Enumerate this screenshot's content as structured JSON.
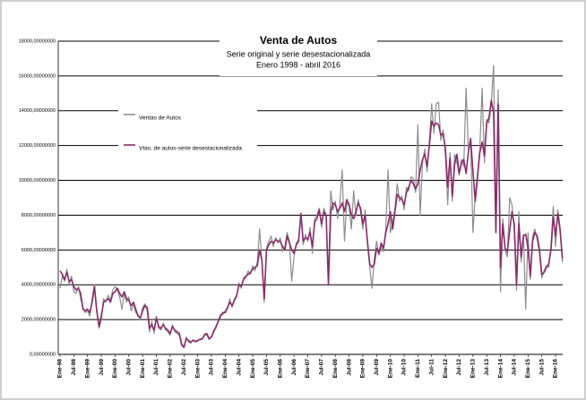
{
  "chart_data": {
    "type": "line",
    "title": "Venta de Autos",
    "subtitle": [
      "Serie original y serie desestacionalizada",
      "Enero 1998 - abril 2016"
    ],
    "categories": [
      "Ene-98",
      null,
      null,
      null,
      null,
      null,
      "Jul-98",
      null,
      null,
      null,
      null,
      null,
      "Ene-99",
      null,
      null,
      null,
      null,
      null,
      "Jul-99",
      null,
      null,
      null,
      null,
      null,
      "Ene-00",
      null,
      null,
      null,
      null,
      null,
      "Jul-00",
      null,
      null,
      null,
      null,
      null,
      "Ene-01",
      null,
      null,
      null,
      null,
      null,
      "Jul-01",
      null,
      null,
      null,
      null,
      null,
      "Ene-02",
      null,
      null,
      null,
      null,
      null,
      "Jul-02",
      null,
      null,
      null,
      null,
      null,
      "Ene-03",
      null,
      null,
      null,
      null,
      null,
      "Jul-03",
      null,
      null,
      null,
      null,
      null,
      "Ene-04",
      null,
      null,
      null,
      null,
      null,
      "Jul-04",
      null,
      null,
      null,
      null,
      null,
      "Ene-05",
      null,
      null,
      null,
      null,
      null,
      "Jul-05",
      null,
      null,
      null,
      null,
      null,
      "Ene-06",
      null,
      null,
      null,
      null,
      null,
      "Jul-06",
      null,
      null,
      null,
      null,
      null,
      "Ene-07",
      null,
      null,
      null,
      null,
      null,
      "Jul-07",
      null,
      null,
      null,
      null,
      null,
      "Ene-08",
      null,
      null,
      null,
      null,
      null,
      "Jul-08",
      null,
      null,
      null,
      null,
      null,
      "Ene-09",
      null,
      null,
      null,
      null,
      null,
      "Jul-09",
      null,
      null,
      null,
      null,
      null,
      "Ene-10",
      null,
      null,
      null,
      null,
      null,
      "Jul-10",
      null,
      null,
      null,
      null,
      null,
      "Ene-11",
      null,
      null,
      null,
      null,
      null,
      "Jul-11",
      null,
      null,
      null,
      null,
      null,
      "Ene-12",
      null,
      null,
      null,
      null,
      null,
      "Jul-12",
      null,
      null,
      null,
      null,
      null,
      "Ene-13",
      null,
      null,
      null,
      null,
      null,
      "Jul-13",
      null,
      null,
      null,
      null,
      null,
      "Ene-14",
      null,
      null,
      null,
      null,
      null,
      "Jul-14",
      null,
      null,
      null,
      null,
      null,
      "Ene-15",
      null,
      null,
      null,
      null,
      null,
      "Jul-15",
      null,
      null,
      null,
      null,
      null,
      "Ene-16",
      null,
      null,
      null
    ],
    "series": [
      {
        "name": "Ventas de Autos",
        "color": "#8c8c8c",
        "values": [
          3800,
          4500,
          4200,
          4900,
          4000,
          4500,
          3600,
          3500,
          3900,
          3200,
          2700,
          2400,
          2500,
          2200,
          3200,
          4000,
          2600,
          1500,
          2000,
          3200,
          3000,
          3400,
          3100,
          3700,
          3900,
          3700,
          3300,
          2600,
          3500,
          3000,
          3300,
          2500,
          2900,
          2400,
          2300,
          2000,
          2700,
          2900,
          2500,
          1300,
          1900,
          1200,
          2200,
          1500,
          1400,
          1800,
          1400,
          1300,
          1100,
          1700,
          1300,
          1200,
          1100,
          500,
          400,
          1000,
          700,
          650,
          850,
          700,
          750,
          900,
          850,
          1200,
          1100,
          850,
          1000,
          1400,
          1500,
          2000,
          2300,
          2300,
          2500,
          2600,
          3200,
          2700,
          3200,
          3300,
          4100,
          3800,
          4400,
          4400,
          4800,
          4600,
          5100,
          4800,
          5300,
          7200,
          5300,
          3000,
          6100,
          6500,
          6800,
          6200,
          6700,
          6400,
          6700,
          5900,
          6200,
          7000,
          6500,
          4200,
          5600,
          6400,
          6600,
          8000,
          6300,
          6900,
          6500,
          7300,
          5800,
          7800,
          8000,
          8400,
          7300,
          8400,
          8000,
          4300,
          9400,
          8300,
          8800,
          7800,
          8700,
          10600,
          6500,
          8800,
          8500,
          7200,
          9400,
          8000,
          8900,
          8200,
          7200,
          8300,
          6400,
          5000,
          3800,
          5500,
          6500,
          5700,
          6200,
          5900,
          7200,
          10600,
          7000,
          7600,
          8400,
          9800,
          8800,
          9100,
          8300,
          9600,
          9400,
          10200,
          10100,
          9300,
          13200,
          8000,
          11000,
          11800,
          10500,
          12200,
          14400,
          12700,
          14400,
          14500,
          12300,
          12900,
          11500,
          8600,
          11600,
          8800,
          11500,
          11000,
          10300,
          11200,
          10800,
          15300,
          11800,
          12300,
          7000,
          9200,
          10400,
          11800,
          15300,
          11000,
          13500,
          13300,
          14400,
          16600,
          7500,
          15200,
          3600,
          7800,
          6000,
          5600,
          9000,
          8600,
          7100,
          3700,
          8200,
          5300,
          6900,
          2600,
          7000,
          4300,
          6800,
          7200,
          6600,
          5800,
          4400,
          4800,
          5100,
          5000,
          6200,
          8500,
          6200,
          8300,
          7300,
          5300
        ]
      },
      {
        "name": "Vtas. de autos-serie desestacionalizada",
        "color": "#8b2a6b",
        "values": [
          4800,
          4600,
          4300,
          4700,
          4200,
          4300,
          3900,
          3700,
          3800,
          3500,
          2600,
          2500,
          2600,
          2400,
          3000,
          3900,
          2500,
          1600,
          2200,
          3000,
          3100,
          3200,
          3000,
          3500,
          3600,
          3800,
          3500,
          3300,
          3600,
          3200,
          3100,
          2800,
          3000,
          2600,
          2200,
          2100,
          2500,
          2800,
          2700,
          1500,
          1700,
          1400,
          2100,
          1600,
          1500,
          1700,
          1500,
          1400,
          1200,
          1600,
          1400,
          1300,
          1200,
          600,
          400,
          900,
          800,
          700,
          800,
          750,
          800,
          850,
          900,
          1100,
          1200,
          900,
          1000,
          1300,
          1600,
          1900,
          2200,
          2400,
          2400,
          2700,
          3000,
          2800,
          3100,
          3400,
          4000,
          3900,
          4300,
          4500,
          4600,
          4700,
          4900,
          5000,
          5100,
          6000,
          5400,
          3200,
          6000,
          6300,
          6500,
          6400,
          6600,
          6500,
          6500,
          6200,
          6000,
          6800,
          6400,
          6000,
          5800,
          6300,
          6500,
          8100,
          6500,
          6700,
          6600,
          7000,
          6200,
          7600,
          7800,
          8300,
          7500,
          8200,
          8000,
          4000,
          8200,
          8700,
          8600,
          8200,
          8400,
          8700,
          8200,
          8900,
          8600,
          8000,
          7800,
          8200,
          8700,
          8400,
          7500,
          8000,
          6500,
          5200,
          5000,
          5200,
          6100,
          5800,
          6400,
          6100,
          7000,
          7500,
          8200,
          7200,
          8200,
          9200,
          9000,
          8900,
          8600,
          9300,
          9600,
          10000,
          9800,
          9500,
          9800,
          10600,
          11200,
          11500,
          10800,
          12000,
          13400,
          13100,
          13300,
          13200,
          12600,
          12700,
          11800,
          9600,
          11300,
          9100,
          10900,
          11500,
          10400,
          11000,
          11200,
          10400,
          11600,
          12400,
          10500,
          8800,
          10200,
          11600,
          12200,
          11400,
          13300,
          13600,
          14600,
          13900,
          7000,
          14400,
          5000,
          7500,
          6100,
          5900,
          7100,
          8200,
          7500,
          4000,
          7500,
          5600,
          6800,
          6900,
          6100,
          4500,
          6500,
          7000,
          6800,
          6000,
          4600,
          4700,
          5000,
          5200,
          6000,
          7900,
          6800,
          8100,
          7100,
          5500
        ]
      }
    ],
    "ylim": [
      0,
      18000
    ],
    "yticks": [
      {
        "value": 0,
        "label": "0,00000000"
      },
      {
        "value": 2000,
        "label": "2000,00000000"
      },
      {
        "value": 4000,
        "label": "4000,00000000"
      },
      {
        "value": 6000,
        "label": "6000,00000000"
      },
      {
        "value": 8000,
        "label": "8000,00000000"
      },
      {
        "value": 10000,
        "label": "10000,00000000"
      },
      {
        "value": 12000,
        "label": "12000,00000000"
      },
      {
        "value": 14000,
        "label": "14000,00000000"
      },
      {
        "value": 16000,
        "label": "16000,00000000"
      },
      {
        "value": 18000,
        "label": "18000,00000000"
      }
    ],
    "grid": true
  }
}
